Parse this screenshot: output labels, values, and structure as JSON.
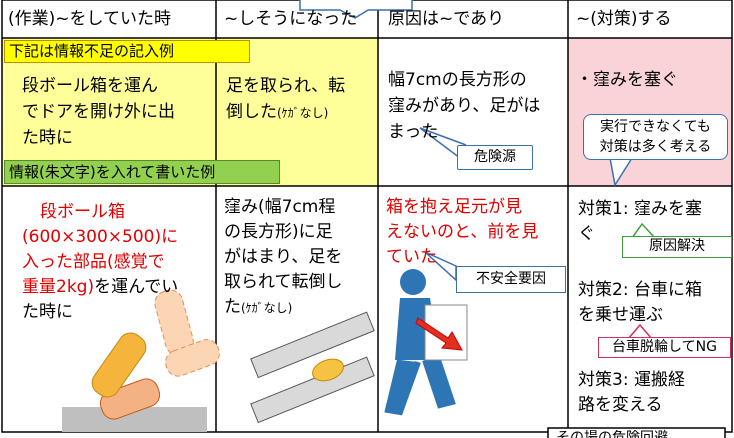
{
  "header": [
    "(作業)~をしていた時",
    "~しそうになった",
    "原因は~であり",
    "~(対策)する"
  ],
  "labels": {
    "insufficient_example": "下記は情報不足の記入例",
    "improved_example": "情報(朱文字)を入れて書いた例"
  },
  "rows": [
    {
      "cells": [
        {
          "lines": [
            [
              "段ボール箱を運ん"
            ],
            [
              "でドアを開け外に出"
            ],
            [
              "た時に"
            ]
          ]
        },
        {
          "lines": [
            [
              "足を取られ、転"
            ],
            [
              "倒した",
              "(ｹｶﾞなし)"
            ]
          ]
        },
        {
          "lines": [
            [
              "幅7cmの長方形の"
            ],
            [
              "窪みがあり、足がは"
            ],
            [
              "まった"
            ]
          ]
        },
        {
          "lines": [
            [
              "・窪みを塞ぐ"
            ]
          ]
        }
      ]
    },
    {
      "cells": [
        {
          "lines": [
            [
              "段ボール箱"
            ],
            [
              "(600×300×500)に"
            ],
            [
              "入った部品(感覚で"
            ],
            [
              "重量2kg)",
              "を運んでい"
            ],
            [
              "た時に"
            ]
          ]
        },
        {
          "lines": [
            [
              "窪み(幅7cm程"
            ],
            [
              "の長方形)に足"
            ],
            [
              "がはまり、足を"
            ],
            [
              "取られて転倒し"
            ],
            [
              "た",
              "(ｹｶﾞなし)"
            ]
          ]
        },
        {
          "lines": [
            [
              "箱を抱え足元が見"
            ],
            [
              "えないのと、前を見"
            ],
            [
              "ていた"
            ]
          ]
        },
        {
          "lines": [
            [
              "対策1: 窪みを塞"
            ],
            [
              "ぐ"
            ],
            [
              "対策2: 台車に箱"
            ],
            [
              "を乗せ運ぶ"
            ],
            [
              "対策3: 運搬経"
            ],
            [
              "路を変える"
            ]
          ]
        }
      ]
    }
  ],
  "callouts": {
    "hazard": "危険源",
    "think_many": [
      "実行できなくても",
      "対策は多く考える"
    ],
    "unsafe_factor": "不安全要因",
    "root_cause": "原因解決",
    "cart_ng": "台車脱輪してNG",
    "on_site": "その場の危険回避"
  }
}
